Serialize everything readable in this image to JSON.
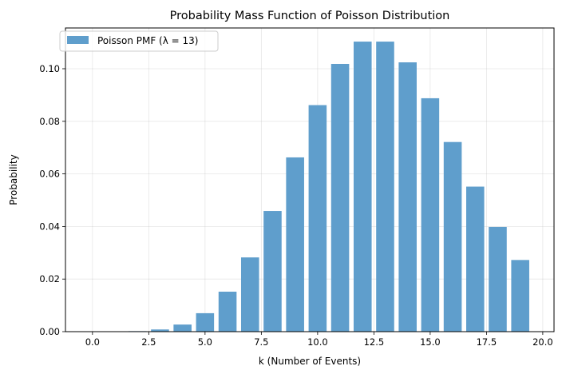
{
  "chart_data": {
    "type": "bar",
    "title": "Probability Mass Function of Poisson Distribution",
    "xlabel": "k (Number of Events)",
    "ylabel": "Probability",
    "xlim": [
      -1.2,
      20.5
    ],
    "ylim": [
      0,
      0.1155
    ],
    "xticks": [
      0.0,
      2.5,
      5.0,
      7.5,
      10.0,
      12.5,
      15.0,
      17.5,
      20.0
    ],
    "xtick_labels": [
      "0.0",
      "2.5",
      "5.0",
      "7.5",
      "10.0",
      "12.5",
      "15.0",
      "17.5",
      "20.0"
    ],
    "yticks": [
      0.0,
      0.02,
      0.04,
      0.06,
      0.08,
      0.1
    ],
    "ytick_labels": [
      "0.00",
      "0.02",
      "0.04",
      "0.06",
      "0.08",
      "0.10"
    ],
    "grid": true,
    "legend_position": "top-left",
    "bar_width": 0.8,
    "color": "#5f9ecc",
    "series": [
      {
        "name": "Poisson PMF (λ = 13)",
        "x": [
          0,
          1,
          2,
          3,
          4,
          5,
          6,
          7,
          8,
          9,
          10,
          11,
          12,
          13,
          14,
          15,
          16,
          17,
          18,
          19
        ],
        "values": [
          2.3e-06,
          2.94e-05,
          0.0001917,
          0.0008304,
          0.0026989,
          0.0070172,
          0.015204,
          0.028236,
          0.0458835,
          0.0662761,
          0.0861589,
          0.1018242,
          0.1103096,
          0.1103096,
          0.1024303,
          0.088773,
          0.072128,
          0.0551567,
          0.0398354,
          0.0272558
        ]
      }
    ]
  }
}
